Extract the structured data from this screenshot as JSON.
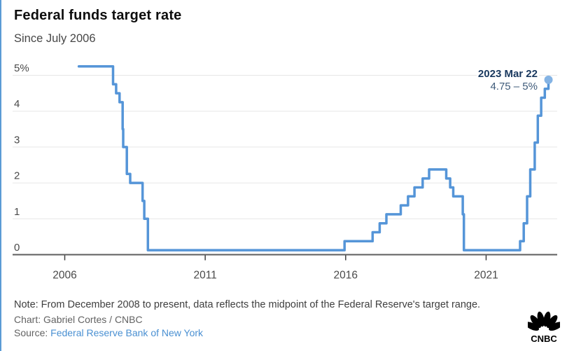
{
  "header": {
    "title": "Federal funds target rate",
    "subtitle": "Since July 2006"
  },
  "chart_data": {
    "type": "line",
    "step": "after",
    "title": "Federal funds target rate",
    "subtitle": "Since July 2006",
    "unit": "percent",
    "xlabel": "",
    "ylabel": "",
    "x_ticks": [
      2006,
      2011,
      2016,
      2021
    ],
    "x_tick_labels": [
      "2006",
      "2011",
      "2016",
      "2021"
    ],
    "y_ticks": [
      0,
      1,
      2,
      3,
      4,
      5
    ],
    "y_tick_labels": [
      "0",
      "1",
      "2",
      "3",
      "4",
      "5%"
    ],
    "xlim": [
      2004.1,
      2023.6
    ],
    "ylim": [
      0,
      5.4
    ],
    "grid": "horizontal",
    "legend": "none",
    "line_color": "#5595D8",
    "marker_color": "#84B3E4",
    "series": [
      {
        "name": "Federal funds target rate (midpoint of target range since Dec 2008)",
        "points": [
          [
            2006.5,
            5.25
          ],
          [
            2007.72,
            4.75
          ],
          [
            2007.83,
            4.5
          ],
          [
            2007.95,
            4.25
          ],
          [
            2008.06,
            3.5
          ],
          [
            2008.08,
            3.0
          ],
          [
            2008.21,
            2.25
          ],
          [
            2008.33,
            2.0
          ],
          [
            2008.77,
            1.5
          ],
          [
            2008.83,
            1.0
          ],
          [
            2008.96,
            0.125
          ],
          [
            2015.96,
            0.375
          ],
          [
            2016.96,
            0.625
          ],
          [
            2017.21,
            0.875
          ],
          [
            2017.45,
            1.125
          ],
          [
            2017.96,
            1.375
          ],
          [
            2018.22,
            1.625
          ],
          [
            2018.45,
            1.875
          ],
          [
            2018.74,
            2.125
          ],
          [
            2018.97,
            2.375
          ],
          [
            2019.58,
            2.125
          ],
          [
            2019.72,
            1.875
          ],
          [
            2019.83,
            1.625
          ],
          [
            2020.17,
            1.125
          ],
          [
            2020.21,
            0.125
          ],
          [
            2022.21,
            0.375
          ],
          [
            2022.34,
            0.875
          ],
          [
            2022.46,
            1.625
          ],
          [
            2022.57,
            2.375
          ],
          [
            2022.73,
            3.125
          ],
          [
            2022.84,
            3.875
          ],
          [
            2022.96,
            4.375
          ],
          [
            2023.09,
            4.625
          ],
          [
            2023.22,
            4.875
          ]
        ]
      }
    ],
    "end_marker": {
      "x": 2023.22,
      "y": 4.875
    },
    "annotation": {
      "date_label": "2023 Mar 22",
      "range_label": "4.75 – 5%"
    }
  },
  "footer": {
    "note": "Note: From December 2008 to present, data reflects the midpoint of the Federal Reserve's target range.",
    "credit": "Chart: Gabriel Cortes / CNBC",
    "source_label": "Source:",
    "source_link_text": "Federal Reserve Bank of New York",
    "logo_text": "CNBC"
  },
  "colors": {
    "accent_border": "#5B9BD5",
    "link": "#4A90D2",
    "gridline": "#E7E7E7",
    "axis": "#5E5E5E"
  }
}
